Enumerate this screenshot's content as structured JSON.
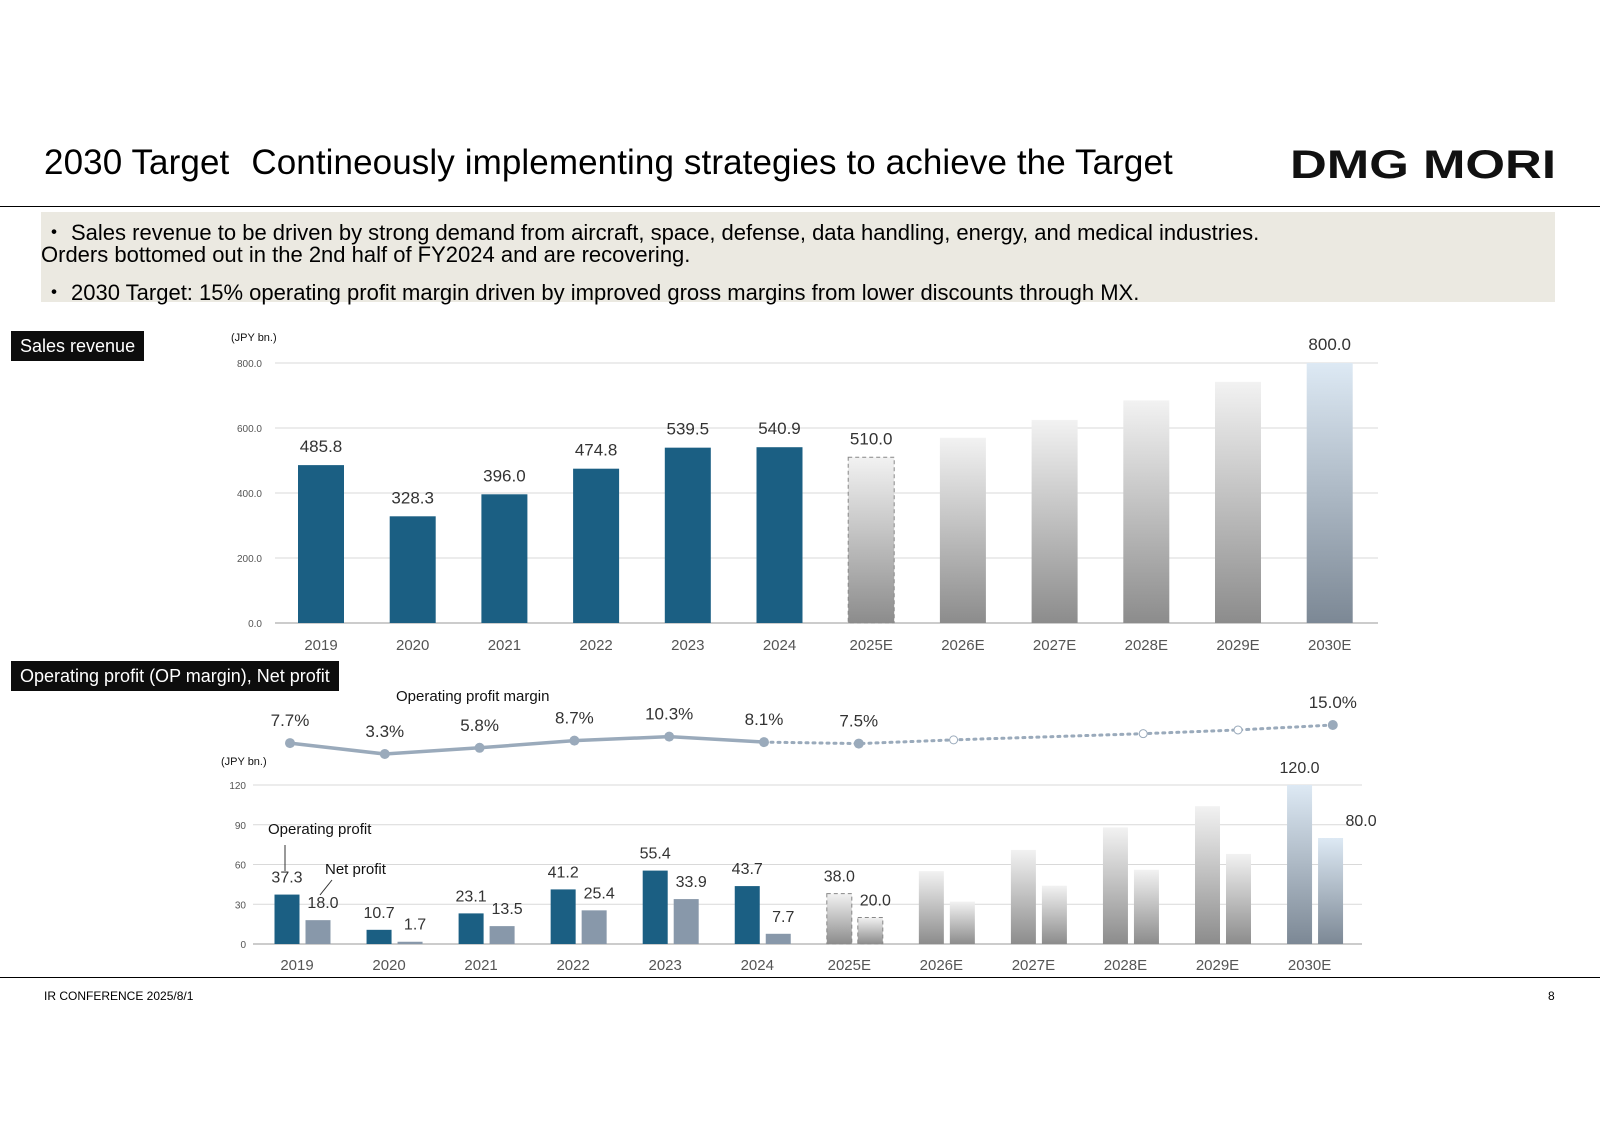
{
  "slide": {
    "title": "2030 Target",
    "subtitle": "Contineously implementing strategies to achieve the Target",
    "logo_text": "DMG MORI",
    "bullets": [
      {
        "marker": "・",
        "text": "Sales revenue to be driven by strong demand from aircraft, space, defense, data handling, energy, and medical industries."
      },
      {
        "marker": "",
        "text": "Orders bottomed out in the 2nd half of FY2024 and are recovering."
      },
      {
        "marker": "・",
        "text": "2030 Target: 15% operating profit margin driven by improved gross margins from lower discounts through MX."
      }
    ],
    "sections": {
      "sales": "Sales revenue",
      "profit": "Operating profit (OP margin), Net profit"
    },
    "footer": {
      "left": "IR CONFERENCE 2025/8/1",
      "page": "8"
    }
  },
  "colors": {
    "actual_bar": "#1b5f83",
    "net_profit_bar": "#8898aa",
    "margin_line": "#9aaabb",
    "label_bg": "#0d0d0d",
    "bullet_bg": "#ebe9e1"
  },
  "chart_data": [
    {
      "type": "bar",
      "title": "Sales revenue",
      "unit_label": "(JPY bn.)",
      "categories": [
        "2019",
        "2020",
        "2021",
        "2022",
        "2023",
        "2024",
        "2025E",
        "2026E",
        "2027E",
        "2028E",
        "2029E",
        "2030E"
      ],
      "series": [
        {
          "name": "Sales revenue",
          "values": [
            485.8,
            328.3,
            396.0,
            474.8,
            539.5,
            540.9,
            510.0,
            570,
            625,
            685,
            742,
            800.0
          ]
        }
      ],
      "data_labels": [
        "485.8",
        "328.3",
        "396.0",
        "474.8",
        "539.5",
        "540.9",
        "510.0",
        "",
        "",
        "",
        "",
        "800.0"
      ],
      "ylim": [
        0,
        800
      ],
      "yticks": [
        0,
        200,
        400,
        600,
        800
      ],
      "ytick_labels": [
        "0.0",
        "200.0",
        "400.0",
        "600.0",
        "800.0"
      ],
      "grid": true
    },
    {
      "type": "line",
      "title": "Operating profit margin",
      "categories": [
        "2019",
        "2020",
        "2021",
        "2022",
        "2023",
        "2024",
        "2025E",
        "2026E",
        "2027E",
        "2028E",
        "2029E",
        "2030E"
      ],
      "series": [
        {
          "name": "Operating profit margin (%)",
          "values": [
            7.7,
            3.3,
            5.8,
            8.7,
            10.3,
            8.1,
            7.5,
            9.0,
            null,
            11.5,
            13.0,
            15.0
          ]
        }
      ],
      "data_labels": [
        "7.7%",
        "3.3%",
        "5.8%",
        "8.7%",
        "10.3%",
        "8.1%",
        "7.5%",
        "",
        "",
        "",
        "",
        "15.0%"
      ]
    },
    {
      "type": "bar",
      "title": "Operating profit, Net profit",
      "unit_label": "(JPY bn.)",
      "categories": [
        "2019",
        "2020",
        "2021",
        "2022",
        "2023",
        "2024",
        "2025E",
        "2026E",
        "2027E",
        "2028E",
        "2029E",
        "2030E"
      ],
      "series": [
        {
          "name": "Operating profit",
          "values": [
            37.3,
            10.7,
            23.1,
            41.2,
            55.4,
            43.7,
            38.0,
            55,
            71,
            88,
            104,
            120.0
          ],
          "data_labels": [
            "37.3",
            "10.7",
            "23.1",
            "41.2",
            "55.4",
            "43.7",
            "38.0",
            "",
            "",
            "",
            "",
            "120.0"
          ]
        },
        {
          "name": "Net profit",
          "values": [
            18.0,
            1.7,
            13.5,
            25.4,
            33.9,
            7.7,
            20.0,
            32,
            44,
            56,
            68,
            80.0
          ],
          "data_labels": [
            "18.0",
            "1.7",
            "13.5",
            "25.4",
            "33.9",
            "7.7",
            "20.0",
            "",
            "",
            "",
            "",
            "80.0"
          ]
        }
      ],
      "annotations": [
        "Operating profit",
        "Net profit"
      ],
      "ylim": [
        0,
        120
      ],
      "yticks": [
        0,
        30,
        60,
        90,
        120
      ],
      "ytick_labels": [
        "0",
        "30",
        "60",
        "90",
        "120"
      ],
      "grid": true
    }
  ]
}
